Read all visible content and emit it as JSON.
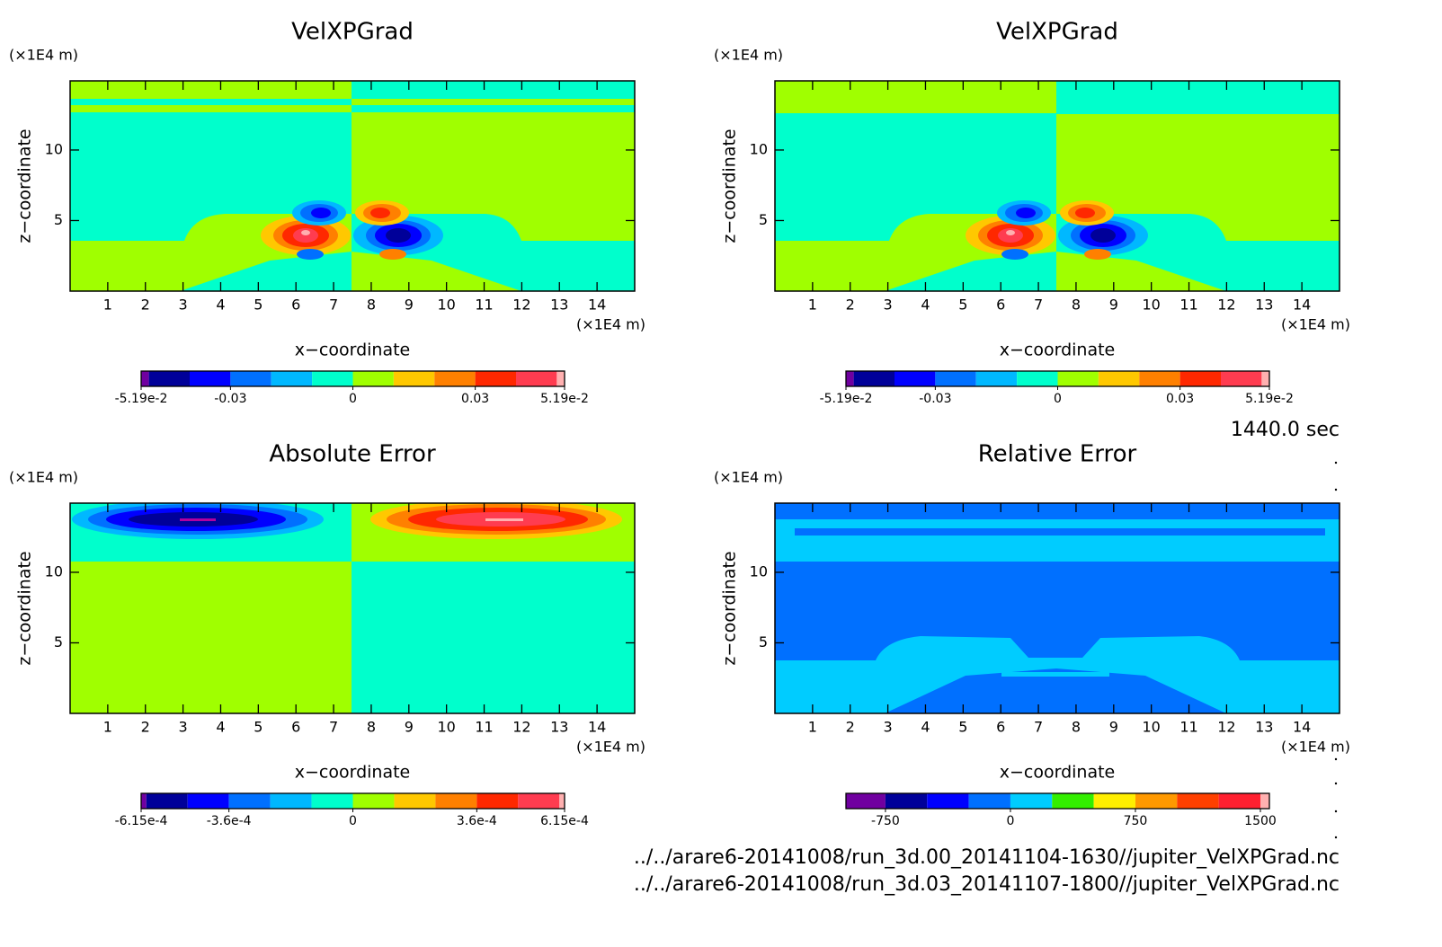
{
  "chart_data": [
    {
      "type": "contour",
      "title": "VelXPGrad",
      "y_unit": "(×1E4 m)",
      "x_unit": "(×1E4 m)",
      "x_label": "x−coordinate",
      "y_label": "z−coordinate",
      "xlim": [
        0,
        15
      ],
      "ylim": [
        0,
        14.9
      ],
      "xticks": [
        1,
        2,
        3,
        4,
        5,
        6,
        7,
        8,
        9,
        10,
        11,
        12,
        13,
        14
      ],
      "yticks": [
        5,
        10
      ],
      "colorbar": {
        "lim": [
          -0.0519,
          0.0519
        ],
        "ticks": [
          {
            "value": -0.0519,
            "label": "-5.19e-2"
          },
          -0.03,
          0,
          0.03,
          {
            "value": 0.0519,
            "label": "5.19e-2"
          }
        ],
        "levels": [
          -0.0519,
          -0.05,
          -0.04,
          -0.03,
          -0.02,
          -0.01,
          0,
          0.01,
          0.02,
          0.03,
          0.04,
          0.05,
          0.0519
        ],
        "colors": [
          "#7000a0",
          "#000099",
          "#0000ff",
          "#0070ff",
          "#00b8ff",
          "#00ffcc",
          "#a0ff00",
          "#ffc800",
          "#ff8000",
          "#ff2800",
          "#ff3c50",
          "#ffb0b0"
        ]
      }
    },
    {
      "type": "contour",
      "title": "VelXPGrad",
      "y_unit": "(×1E4 m)",
      "x_unit": "(×1E4 m)",
      "x_label": "x−coordinate",
      "y_label": "z−coordinate",
      "xlim": [
        0,
        15
      ],
      "ylim": [
        0,
        14.9
      ],
      "xticks": [
        1,
        2,
        3,
        4,
        5,
        6,
        7,
        8,
        9,
        10,
        11,
        12,
        13,
        14
      ],
      "yticks": [
        5,
        10
      ],
      "colorbar": {
        "lim": [
          -0.0519,
          0.0519
        ],
        "ticks": [
          {
            "value": -0.0519,
            "label": "-5.19e-2"
          },
          -0.03,
          0,
          0.03,
          {
            "value": 0.0519,
            "label": "5.19e-2"
          }
        ],
        "levels": [
          -0.0519,
          -0.05,
          -0.04,
          -0.03,
          -0.02,
          -0.01,
          0,
          0.01,
          0.02,
          0.03,
          0.04,
          0.05,
          0.0519
        ],
        "colors": [
          "#7000a0",
          "#000099",
          "#0000ff",
          "#0070ff",
          "#00b8ff",
          "#00ffcc",
          "#a0ff00",
          "#ffc800",
          "#ff8000",
          "#ff2800",
          "#ff3c50",
          "#ffb0b0"
        ]
      }
    },
    {
      "type": "contour",
      "title": "Absolute Error",
      "y_unit": "(×1E4 m)",
      "x_unit": "(×1E4 m)",
      "x_label": "x−coordinate",
      "y_label": "z−coordinate",
      "xlim": [
        0,
        15
      ],
      "ylim": [
        0,
        14.9
      ],
      "xticks": [
        1,
        2,
        3,
        4,
        5,
        6,
        7,
        8,
        9,
        10,
        11,
        12,
        13,
        14
      ],
      "yticks": [
        5,
        10
      ],
      "colorbar": {
        "lim": [
          -0.000615,
          0.000615
        ],
        "ticks": [
          {
            "value": -0.000615,
            "label": "-6.15e-4"
          },
          {
            "value": -0.00036,
            "label": "-3.6e-4"
          },
          0,
          {
            "value": 0.00036,
            "label": "3.6e-4"
          },
          {
            "value": 0.000615,
            "label": "6.15e-4"
          }
        ],
        "levels": [
          -0.000615,
          -0.0006,
          -0.00048,
          -0.00036,
          -0.00024,
          -0.00012,
          0,
          0.00012,
          0.00024,
          0.00036,
          0.00048,
          0.0006,
          0.000615
        ],
        "colors": [
          "#7000a0",
          "#000099",
          "#0000ff",
          "#0070ff",
          "#00b8ff",
          "#00ffcc",
          "#a0ff00",
          "#ffc800",
          "#ff8000",
          "#ff2800",
          "#ff3c50",
          "#ffb0b0"
        ]
      }
    },
    {
      "type": "contour",
      "title": "Relative Error",
      "y_unit": "(×1E4 m)",
      "x_unit": "(×1E4 m)",
      "x_label": "x−coordinate",
      "y_label": "z−coordinate",
      "xlim": [
        0,
        15
      ],
      "ylim": [
        0,
        14.9
      ],
      "xticks": [
        1,
        2,
        3,
        4,
        5,
        6,
        7,
        8,
        9,
        10,
        11,
        12,
        13,
        14
      ],
      "yticks": [
        5,
        10
      ],
      "colorbar": {
        "lim": [
          -987,
          1554
        ],
        "ticks": [
          -750,
          0,
          750,
          1500
        ],
        "levels": [
          -987,
          -750,
          -500,
          -250,
          0,
          250,
          500,
          750,
          1000,
          1250,
          1500,
          1554
        ],
        "colors": [
          "#7000a0",
          "#000099",
          "#0000ff",
          "#0070ff",
          "#00ccff",
          "#33ee00",
          "#ffee00",
          "#ff9900",
          "#ff4000",
          "#ff2030",
          "#ffb0b0"
        ]
      }
    }
  ],
  "time_label": "1440.0 sec",
  "files": [
    "../../arare6-20141008/run_3d.00_20141104-1630//jupiter_VelXPGrad.nc",
    "../../arare6-20141008/run_3d.03_20141107-1800//jupiter_VelXPGrad.nc"
  ]
}
